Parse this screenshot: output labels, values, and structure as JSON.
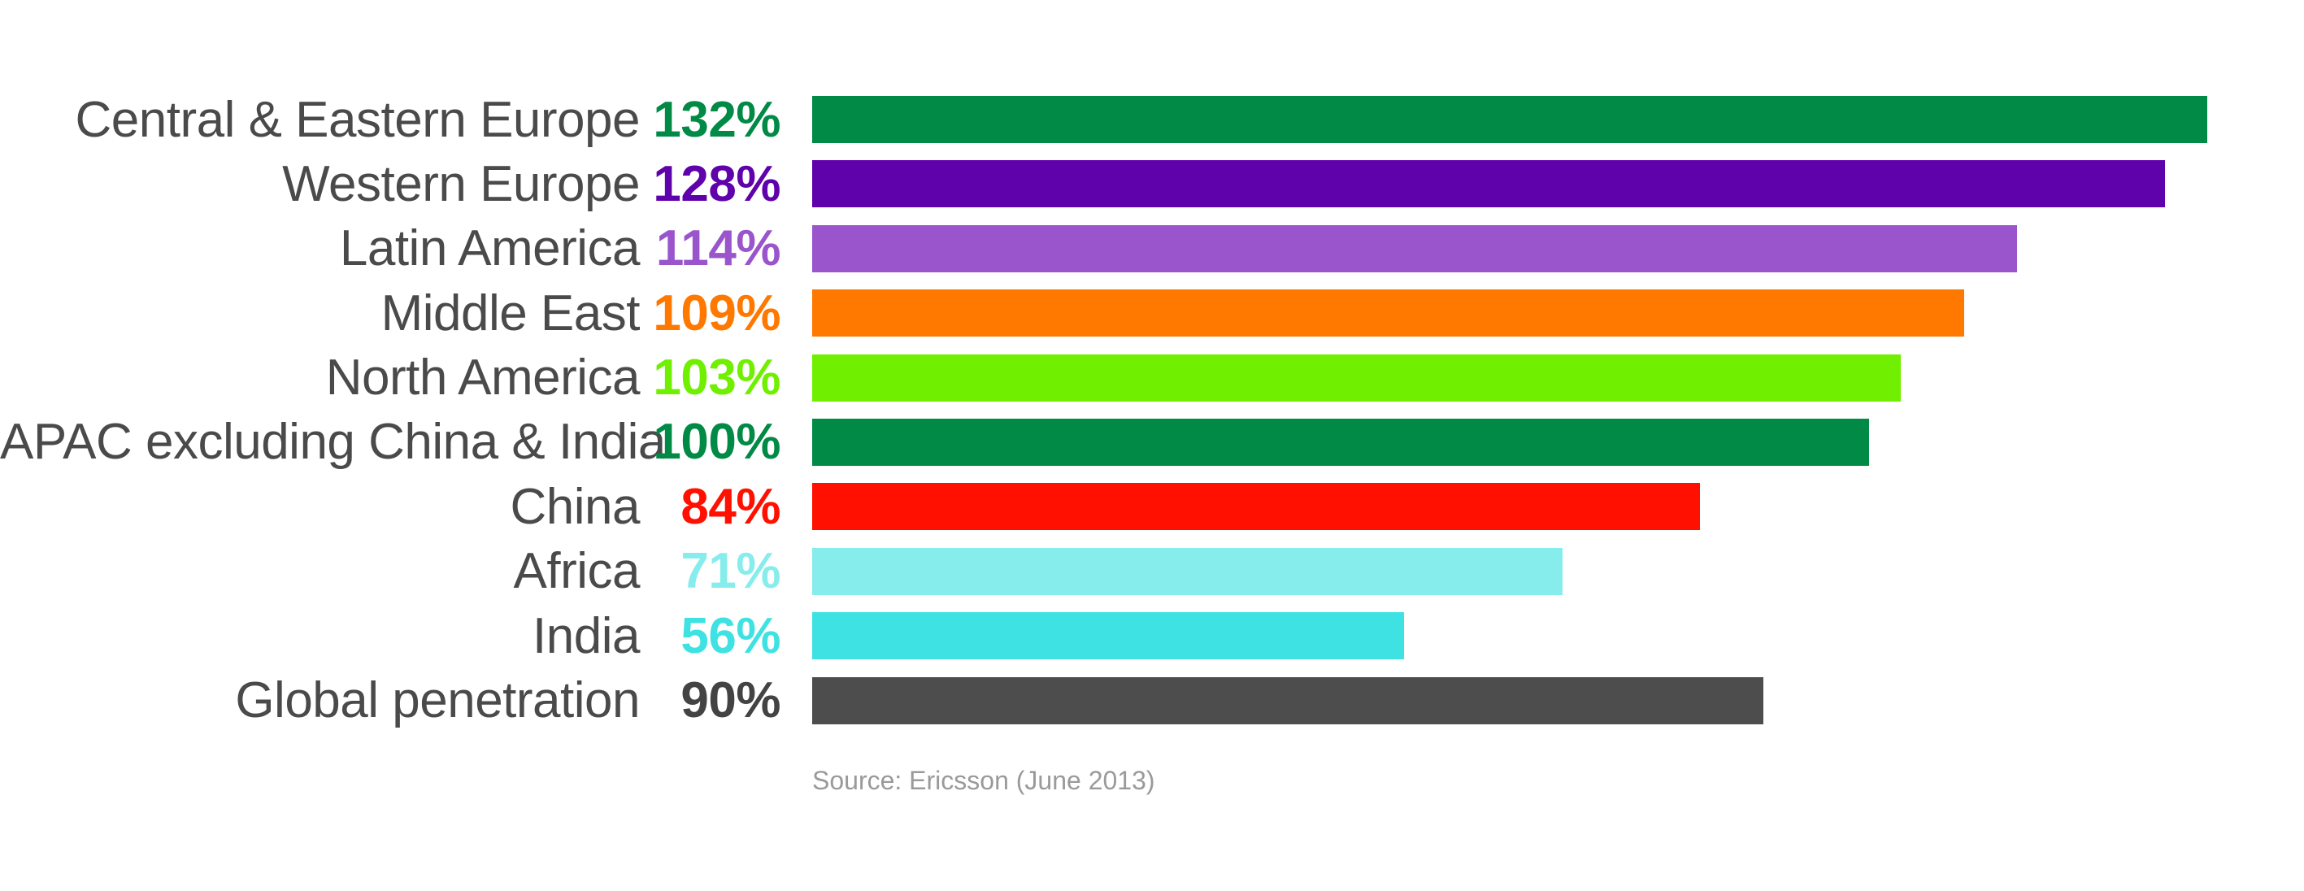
{
  "chart_data": {
    "type": "bar",
    "orientation": "horizontal",
    "categories": [
      "Central & Eastern Europe",
      "Western Europe",
      "Latin America",
      "Middle East",
      "North America",
      "APAC excluding China & India",
      "China",
      "Africa",
      "India",
      "Global penetration"
    ],
    "values": [
      132,
      128,
      114,
      109,
      103,
      100,
      84,
      71,
      56,
      90
    ],
    "value_labels": [
      "132%",
      "128%",
      "114%",
      "109%",
      "103%",
      "100%",
      "84%",
      "71%",
      "56%",
      "90%"
    ],
    "bar_colors": [
      "#008a46",
      "#6002ac",
      "#9a55cc",
      "#ff7800",
      "#70f000",
      "#008a46",
      "#ff1000",
      "#87edec",
      "#3fe2e2",
      "#4d4d4d"
    ],
    "value_text_colors": [
      "#008a46",
      "#6002ac",
      "#9a55cc",
      "#ff7800",
      "#70f000",
      "#008a46",
      "#ff1000",
      "#87edec",
      "#3fe2e2",
      "#434343"
    ],
    "label_text_color": "#4a4a4a",
    "xlim": [
      0,
      140
    ],
    "grid": false,
    "legend": "none",
    "title": "",
    "source_note": "Source: Ericsson (June 2013)"
  }
}
